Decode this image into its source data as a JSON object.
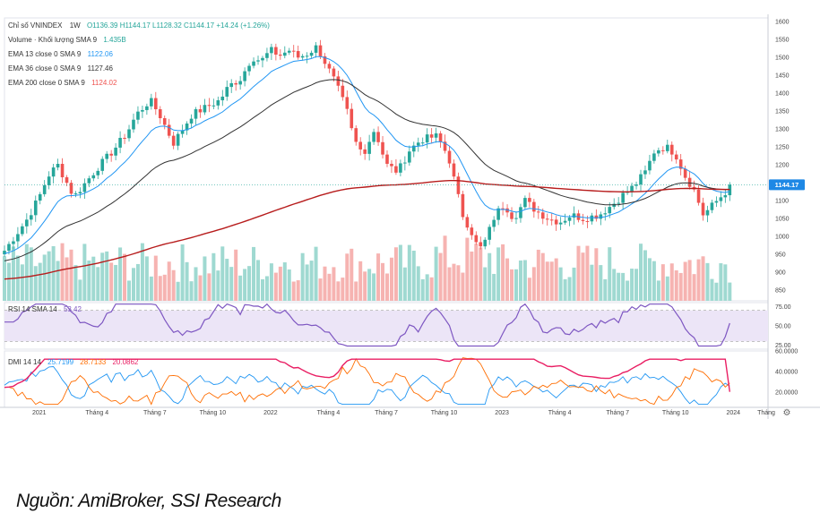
{
  "legend": {
    "main_title": "Chỉ số VNINDEX",
    "interval": "1W",
    "ohlc": "O1136.39 H1144.17 L1128.32 C1144.17 +14.24 (+1.26%)",
    "volume_label": "Volume · Khối lượng SMA 9",
    "volume_value": "1.435B",
    "ema13_label": "EMA 13 close 0 SMA 9",
    "ema13_value": "1122.06",
    "ema36_label": "EMA 36 close 0 SMA 9",
    "ema36_value": "1127.46",
    "ema200_label": "EMA 200 close 0 SMA 9",
    "ema200_value": "1124.02",
    "rsi_label": "RSI 14 SMA 14",
    "rsi_value": "53.42",
    "dmi_label": "DMI 14 14",
    "dmi_plus": "25.7199",
    "dmi_minus": "28.7133",
    "adx_value": "20.0862"
  },
  "last_price_tag": "1144.17",
  "source": "Nguồn: AmiBroker, SSI Research",
  "colors": {
    "up": "#26a69a",
    "down": "#ef5350",
    "ema13": "#2196f3",
    "ema36": "#333333",
    "ema200": "#b71c1c",
    "rsi": "#7e57c2",
    "rsi_band": "#ece5f7",
    "dmi_plus": "#2196f3",
    "dmi_minus": "#ff6d00",
    "adx": "#e91e63",
    "price_tag": "#1e88e5"
  },
  "chart_data": [
    {
      "type": "candlestick",
      "title": "Chỉ số VNINDEX",
      "interval": "1W",
      "ylim": [
        820,
        1610
      ],
      "y_ticks": [
        850,
        900,
        950,
        1000,
        1050,
        1100,
        1150,
        1200,
        1250,
        1300,
        1350,
        1400,
        1450,
        1500,
        1550,
        1600
      ],
      "x_tick_labels": [
        "2021",
        "Tháng 4",
        "Tháng 7",
        "Tháng 10",
        "2022",
        "Tháng 4",
        "Tháng 7",
        "Tháng 10",
        "2023",
        "Tháng 4",
        "Tháng 7",
        "Tháng 10",
        "2024",
        "Tháng"
      ],
      "series": [
        {
          "name": "VNINDEX",
          "close_path": [
            [
              2020.85,
              960
            ],
            [
              2020.9,
              1005
            ],
            [
              2020.95,
              1050
            ],
            [
              2021.0,
              1110
            ],
            [
              2021.04,
              1170
            ],
            [
              2021.08,
              1200
            ],
            [
              2021.15,
              1110
            ],
            [
              2021.2,
              1150
            ],
            [
              2021.25,
              1190
            ],
            [
              2021.32,
              1240
            ],
            [
              2021.38,
              1290
            ],
            [
              2021.42,
              1340
            ],
            [
              2021.48,
              1380
            ],
            [
              2021.52,
              1340
            ],
            [
              2021.58,
              1260
            ],
            [
              2021.62,
              1300
            ],
            [
              2021.66,
              1340
            ],
            [
              2021.72,
              1360
            ],
            [
              2021.78,
              1380
            ],
            [
              2021.82,
              1420
            ],
            [
              2021.87,
              1440
            ],
            [
              2021.92,
              1500
            ],
            [
              2021.96,
              1490
            ],
            [
              2022.0,
              1520
            ],
            [
              2022.04,
              1505
            ],
            [
              2022.08,
              1520
            ],
            [
              2022.12,
              1500
            ],
            [
              2022.16,
              1510
            ],
            [
              2022.2,
              1530
            ],
            [
              2022.24,
              1480
            ],
            [
              2022.28,
              1430
            ],
            [
              2022.33,
              1350
            ],
            [
              2022.36,
              1270
            ],
            [
              2022.4,
              1230
            ],
            [
              2022.45,
              1300
            ],
            [
              2022.5,
              1200
            ],
            [
              2022.55,
              1180
            ],
            [
              2022.6,
              1240
            ],
            [
              2022.65,
              1270
            ],
            [
              2022.72,
              1280
            ],
            [
              2022.77,
              1220
            ],
            [
              2022.8,
              1140
            ],
            [
              2022.83,
              1060
            ],
            [
              2022.87,
              1010
            ],
            [
              2022.9,
              960
            ],
            [
              2022.93,
              990
            ],
            [
              2022.97,
              1060
            ],
            [
              2023.01,
              1090
            ],
            [
              2023.05,
              1050
            ],
            [
              2023.1,
              1100
            ],
            [
              2023.15,
              1070
            ],
            [
              2023.2,
              1050
            ],
            [
              2023.25,
              1040
            ],
            [
              2023.3,
              1060
            ],
            [
              2023.35,
              1050
            ],
            [
              2023.42,
              1060
            ],
            [
              2023.48,
              1090
            ],
            [
              2023.53,
              1120
            ],
            [
              2023.57,
              1140
            ],
            [
              2023.62,
              1180
            ],
            [
              2023.66,
              1240
            ],
            [
              2023.71,
              1250
            ],
            [
              2023.75,
              1230
            ],
            [
              2023.79,
              1170
            ],
            [
              2023.83,
              1130
            ],
            [
              2023.87,
              1060
            ],
            [
              2023.9,
              1080
            ],
            [
              2023.93,
              1100
            ],
            [
              2023.96,
              1120
            ],
            [
              2024.0,
              1144
            ]
          ]
        },
        {
          "name": "EMA 13 close 0 SMA 9",
          "last": 1122.06
        },
        {
          "name": "EMA 36 close 0 SMA 9",
          "last": 1127.46
        },
        {
          "name": "EMA 200 close 0 SMA 9",
          "last": 1124.02
        },
        {
          "name": "Volume · Khối lượng SMA 9",
          "last": "1.435B"
        }
      ],
      "last_value": 1144.17
    },
    {
      "type": "line",
      "title": "RSI 14 SMA 14",
      "ylim": [
        20,
        80
      ],
      "y_ticks": [
        25,
        50,
        75
      ],
      "band": [
        30,
        70
      ],
      "series": [
        {
          "name": "RSI 14 SMA 14",
          "last": 53.42
        }
      ]
    },
    {
      "type": "line",
      "title": "DMI 14 14",
      "ylim": [
        5,
        60
      ],
      "y_ticks": [
        20,
        40,
        60
      ],
      "series": [
        {
          "name": "DMI 14 14",
          "last": 25.7199
        },
        {
          "name": "DMI 14 14",
          "last": 28.7133
        },
        {
          "name": "DMI 14 14",
          "last": 20.0862
        }
      ]
    }
  ]
}
